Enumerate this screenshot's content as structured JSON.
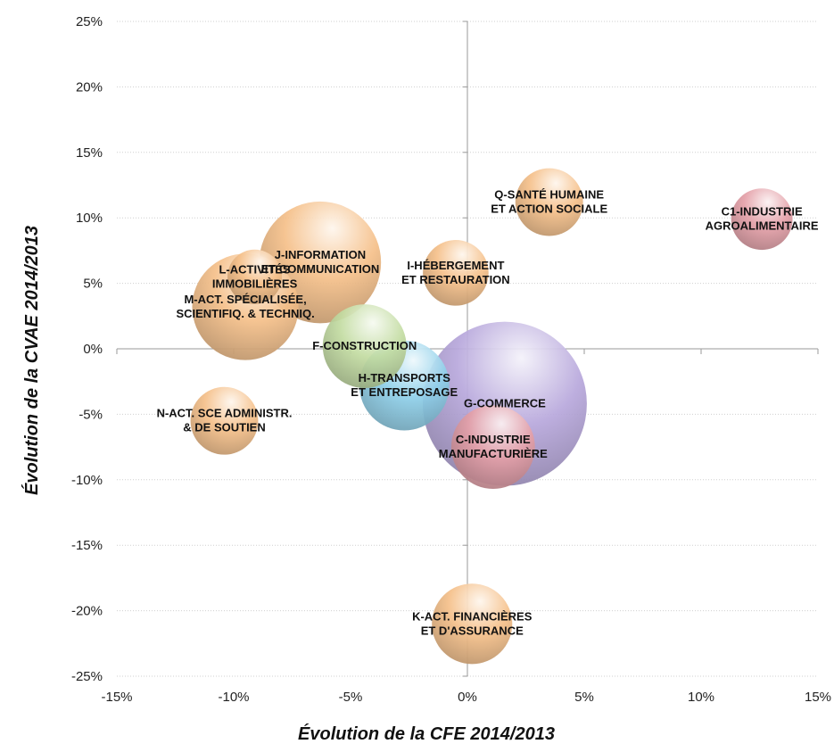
{
  "chart_data": {
    "type": "scatter",
    "subtype": "bubble",
    "xlabel": "Évolution de la CFE 2014/2013",
    "ylabel": "Évolution de la CVAE 2014/2013",
    "xlim": [
      -15,
      15
    ],
    "ylim": [
      -25,
      25
    ],
    "x_ticks": [
      "-15%",
      "-10%",
      "-5%",
      "0%",
      "5%",
      "10%",
      "15%"
    ],
    "y_ticks": [
      "25%",
      "20%",
      "15%",
      "10%",
      "5%",
      "0%",
      "-5%",
      "-10%",
      "-15%",
      "-20%",
      "-25%"
    ],
    "grid": "horizontal",
    "points": [
      {
        "name": "G-COMMERCE",
        "label": [
          "G-COMMERCE"
        ],
        "x": 1.6,
        "y": -4.2,
        "size": 1.0,
        "color": "#b8a8dc"
      },
      {
        "name": "J-INFORMATION ET COMMUNICATION",
        "label": [
          "J-INFORMATION",
          "ET COMMUNICATION"
        ],
        "x": -6.3,
        "y": 6.6,
        "size": 0.55,
        "color": "#f5c08a"
      },
      {
        "name": "M-ACT. SPÉCIALISÉE, SCIENTIFIQ. & TECHNIQ.",
        "label": [
          "M-ACT. SPÉCIALISÉE,",
          "SCIENTIFIQ. & TECHNIQ."
        ],
        "x": -9.5,
        "y": 3.2,
        "size": 0.42,
        "color": "#f5c08a"
      },
      {
        "name": "H-TRANSPORTS ET ENTREPOSAGE",
        "label": [
          "H-TRANSPORTS",
          "ET ENTREPOSAGE"
        ],
        "x": -2.7,
        "y": -2.8,
        "size": 0.3,
        "color": "#8fd0ea"
      },
      {
        "name": "F-CONSTRUCTION",
        "label": [
          "F-CONSTRUCTION"
        ],
        "x": -4.4,
        "y": 0.2,
        "size": 0.26,
        "color": "#c3dca2"
      },
      {
        "name": "C-INDUSTRIE MANUFACTURIÈRE",
        "label": [
          "C-INDUSTRIE",
          "MANUFACTURIÈRE"
        ],
        "x": 1.1,
        "y": -7.5,
        "size": 0.26,
        "color": "#e4a0a8"
      },
      {
        "name": "K-ACT. FINANCIÈRES ET D'ASSURANCE",
        "label": [
          "K-ACT. FINANCIÈRES",
          "ET D'ASSURANCE"
        ],
        "x": 0.2,
        "y": -21.0,
        "size": 0.24,
        "color": "#f5c08a"
      },
      {
        "name": "Q-SANTÉ HUMAINE ET ACTION SOCIALE",
        "label": [
          "Q-SANTÉ HUMAINE",
          "ET ACTION SOCIALE"
        ],
        "x": 3.5,
        "y": 11.2,
        "size": 0.17,
        "color": "#f5c08a"
      },
      {
        "name": "N-ACT. SCE ADMINISTR. & DE SOUTIEN",
        "label": [
          "N-ACT. SCE ADMINISTR.",
          "& DE SOUTIEN"
        ],
        "x": -10.4,
        "y": -5.5,
        "size": 0.17,
        "color": "#f5c08a"
      },
      {
        "name": "I-HÉBERGEMENT ET RESTAURATION",
        "label": [
          "I-HÉBERGEMENT",
          "ET RESTAURATION"
        ],
        "x": -0.5,
        "y": 5.8,
        "size": 0.16,
        "color": "#f5c08a"
      },
      {
        "name": "C1-INDUSTRIE AGROALIMENTAIRE",
        "label": [
          "C1-INDUSTRIE",
          "AGROALIMENTAIRE"
        ],
        "x": 12.6,
        "y": 9.9,
        "size": 0.14,
        "color": "#e4a0a8"
      },
      {
        "name": "L-ACTIVITÉS IMMOBILIÈRES",
        "label": [
          "L-ACTIVITÉS",
          "IMMOBILIÈRES"
        ],
        "x": -9.1,
        "y": 5.5,
        "size": 0.11,
        "color": "#f5c08a"
      }
    ]
  }
}
